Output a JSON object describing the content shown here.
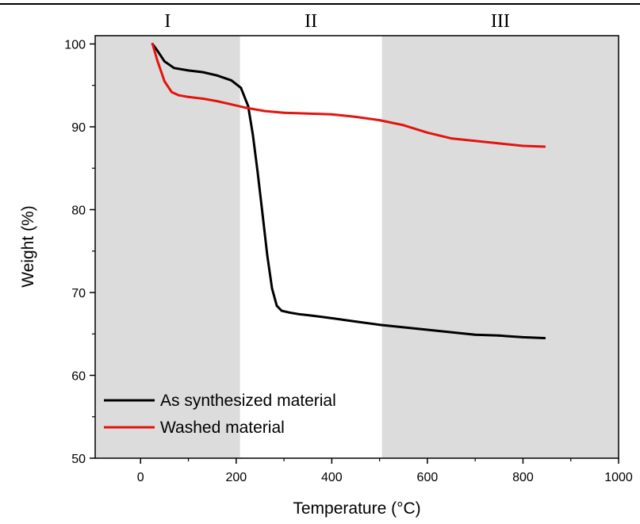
{
  "chart_data": {
    "type": "line",
    "xlabel": "Temperature (°C)",
    "ylabel": "Weight (%)",
    "xlim": [
      -95,
      1000
    ],
    "ylim": [
      50,
      101
    ],
    "xticks": [
      0,
      200,
      400,
      600,
      800,
      1000
    ],
    "yticks": [
      50,
      60,
      70,
      80,
      90,
      100
    ],
    "xtick_labels": [
      "0",
      "200",
      "400",
      "600",
      "800",
      "1000"
    ],
    "ytick_labels": [
      "50",
      "60",
      "70",
      "80",
      "90",
      "100"
    ],
    "grid": false,
    "legend_position": "bottom-left",
    "regions": [
      {
        "label": "I",
        "x_from": -95,
        "x_to": 208,
        "shaded": true,
        "color": "#dcdcdc"
      },
      {
        "label": "II",
        "x_from": 208,
        "x_to": 505,
        "shaded": false,
        "color": "#ffffff"
      },
      {
        "label": "III",
        "x_from": 505,
        "x_to": 1000,
        "shaded": true,
        "color": "#dcdcdc"
      }
    ],
    "series": [
      {
        "name": "As synthesized material",
        "color": "#000000",
        "x": [
          25,
          35,
          50,
          70,
          100,
          130,
          160,
          190,
          210,
          225,
          235,
          245,
          255,
          265,
          275,
          285,
          295,
          310,
          330,
          360,
          400,
          450,
          500,
          550,
          600,
          650,
          700,
          750,
          800,
          845
        ],
        "y": [
          100,
          99.2,
          97.9,
          97.1,
          96.8,
          96.6,
          96.2,
          95.6,
          94.7,
          92.5,
          89,
          84.5,
          79.5,
          74.5,
          70.5,
          68.4,
          67.8,
          67.6,
          67.4,
          67.2,
          66.9,
          66.5,
          66.1,
          65.8,
          65.5,
          65.2,
          64.9,
          64.8,
          64.6,
          64.5
        ]
      },
      {
        "name": "Washed material",
        "color": "#e3140f",
        "x": [
          25,
          35,
          50,
          65,
          80,
          100,
          130,
          160,
          190,
          220,
          260,
          300,
          350,
          400,
          450,
          500,
          550,
          600,
          650,
          700,
          750,
          800,
          845
        ],
        "y": [
          100,
          98,
          95.5,
          94.2,
          93.8,
          93.6,
          93.4,
          93.1,
          92.7,
          92.3,
          91.9,
          91.7,
          91.6,
          91.5,
          91.2,
          90.8,
          90.2,
          89.3,
          88.6,
          88.3,
          88.0,
          87.7,
          87.6
        ]
      }
    ]
  }
}
